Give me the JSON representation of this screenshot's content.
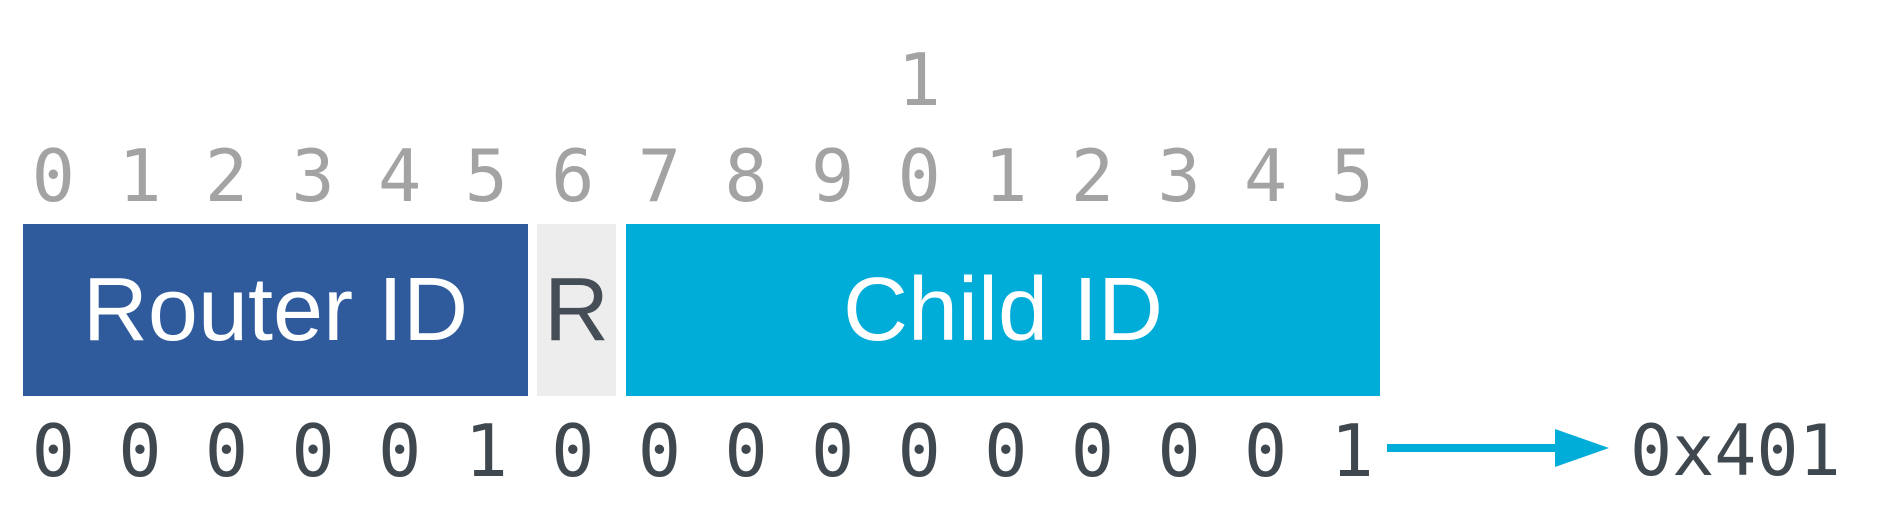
{
  "diagram": {
    "bit_count": 16,
    "bit_index": {
      "tens_label": "1",
      "tens_bit": 10,
      "ones": [
        "0",
        "1",
        "2",
        "3",
        "4",
        "5",
        "6",
        "7",
        "8",
        "9",
        "0",
        "1",
        "2",
        "3",
        "4",
        "5"
      ]
    },
    "fields": [
      {
        "id": "router-id",
        "label": "Router ID",
        "bits": "0-5",
        "fill": "#2F5B9D",
        "text_color": "#FFFFFF"
      },
      {
        "id": "r-flag",
        "label": "R",
        "bits": "6",
        "fill": "#EDEDED",
        "text_color": "#454D57"
      },
      {
        "id": "child-id",
        "label": "Child ID",
        "bits": "7-15",
        "fill": "#00ACD8",
        "text_color": "#FFFFFF"
      }
    ],
    "binary_bits": [
      "0",
      "0",
      "0",
      "0",
      "0",
      "1",
      "0",
      "0",
      "0",
      "0",
      "0",
      "0",
      "0",
      "0",
      "0",
      "1"
    ],
    "arrow": {
      "direction": "right",
      "color": "#00ACD8"
    },
    "hex_value": "0x401",
    "colors": {
      "background": "#FFFFFF",
      "bit_index_text": "#A3A3A3",
      "binary_text": "#40484F"
    }
  }
}
